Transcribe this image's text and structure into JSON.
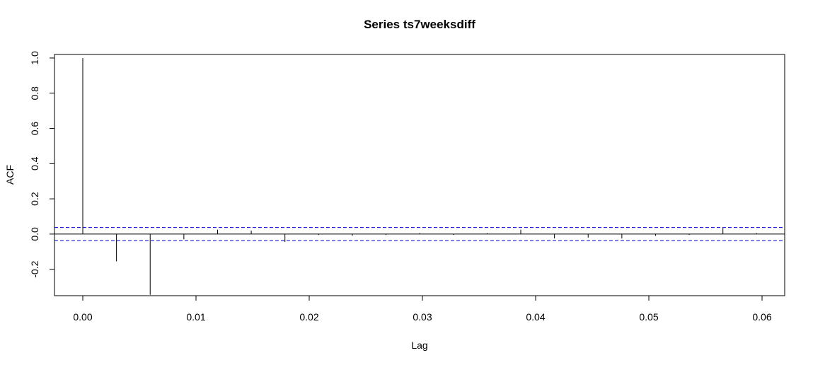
{
  "chart_data": {
    "type": "bar",
    "title": "Series  ts7weeksdiff",
    "xlabel": "Lag",
    "ylabel": "ACF",
    "xlim": [
      -0.0025,
      0.062
    ],
    "ylim": [
      -0.35,
      1.02
    ],
    "x_ticks": [
      0.0,
      0.01,
      0.02,
      0.03,
      0.04,
      0.05,
      0.06
    ],
    "x_tick_labels": [
      "0.00",
      "0.01",
      "0.02",
      "0.03",
      "0.04",
      "0.05",
      "0.06"
    ],
    "y_ticks": [
      -0.2,
      0.0,
      0.2,
      0.4,
      0.6,
      0.8,
      1.0
    ],
    "y_tick_labels": [
      "-0.2",
      "0.0",
      "0.2",
      "0.4",
      "0.6",
      "0.8",
      "1.0"
    ],
    "lag_step": 0.002976,
    "lags": [
      0,
      1,
      2,
      3,
      4,
      5,
      6,
      7,
      8,
      9,
      10,
      11,
      12,
      13,
      14,
      15,
      16,
      17,
      18,
      19,
      20
    ],
    "acf": [
      1.0,
      -0.155,
      -0.345,
      -0.03,
      0.025,
      0.02,
      -0.045,
      -0.005,
      -0.01,
      -0.005,
      0.005,
      -0.005,
      0.005,
      0.025,
      -0.025,
      -0.02,
      -0.025,
      -0.01,
      -0.005,
      0.035,
      0.005
    ],
    "confidence_bound": 0.037,
    "grid": false,
    "colors": {
      "bars": "#000000",
      "confidence": "#0000cc",
      "zero_line": "#000000"
    }
  }
}
